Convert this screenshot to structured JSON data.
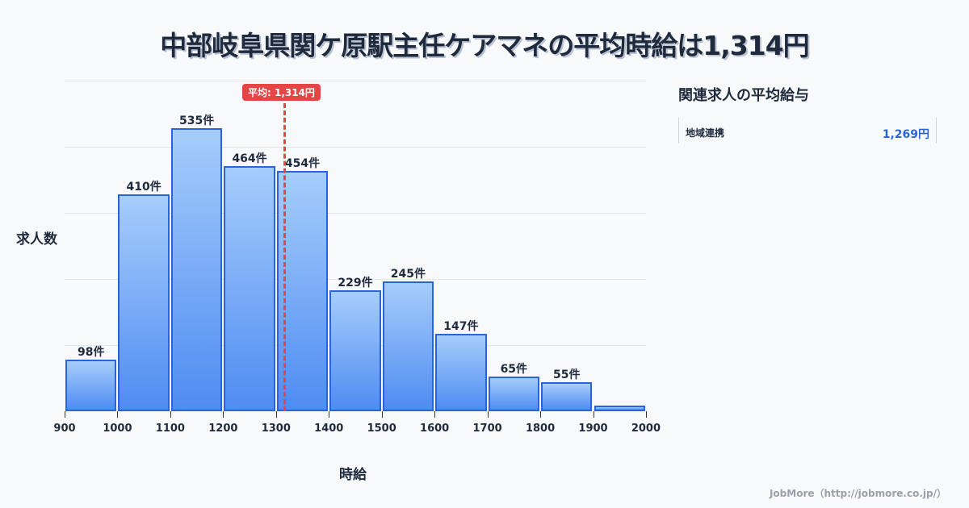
{
  "title": "中部岐阜県関ケ原駅主任ケアマネの平均時給は1,314円",
  "average_badge": "平均: 1,314円",
  "y_axis_label": "求人数",
  "x_axis_label": "時給",
  "ticks": [
    "900",
    "1000",
    "1100",
    "1200",
    "1300",
    "1400",
    "1500",
    "1600",
    "1700",
    "1800",
    "1900",
    "2000"
  ],
  "bars": [
    {
      "label": "98件",
      "value": 98
    },
    {
      "label": "410件",
      "value": 410
    },
    {
      "label": "535件",
      "value": 535
    },
    {
      "label": "464件",
      "value": 464
    },
    {
      "label": "454件",
      "value": 454
    },
    {
      "label": "229件",
      "value": 229
    },
    {
      "label": "245件",
      "value": 245
    },
    {
      "label": "147件",
      "value": 147
    },
    {
      "label": "65件",
      "value": 65
    },
    {
      "label": "55件",
      "value": 55
    },
    {
      "label": "",
      "value": 11
    }
  ],
  "side_panel": {
    "title": "関連求人の平均給与",
    "rows": [
      {
        "label": "地域連携",
        "value": "1,269円"
      }
    ]
  },
  "footer": "JobMore（http://jobmore.co.jp/）",
  "colors": {
    "bar_fill_top": "#a6cdfb",
    "bar_fill_bottom": "#4f8cf2",
    "bar_border": "#2a64dc",
    "average_line": "#e54545",
    "accent_value": "#2a64dc"
  },
  "chart_data": {
    "type": "bar",
    "title": "中部岐阜県関ケ原駅主任ケアマネの平均時給は1,314円",
    "xlabel": "時給",
    "ylabel": "求人数",
    "categories": [
      "900-1000",
      "1000-1100",
      "1100-1200",
      "1200-1300",
      "1300-1400",
      "1400-1500",
      "1500-1600",
      "1600-1700",
      "1700-1800",
      "1800-1900",
      "1900-2000"
    ],
    "values": [
      98,
      410,
      535,
      464,
      454,
      229,
      245,
      147,
      65,
      55,
      11
    ],
    "x_ticks": [
      900,
      1000,
      1100,
      1200,
      1300,
      1400,
      1500,
      1600,
      1700,
      1800,
      1900,
      2000
    ],
    "ylim": [
      0,
      625
    ],
    "grid": true,
    "annotations": [
      {
        "type": "vline",
        "x": 1314,
        "label": "平均: 1,314円"
      }
    ]
  }
}
